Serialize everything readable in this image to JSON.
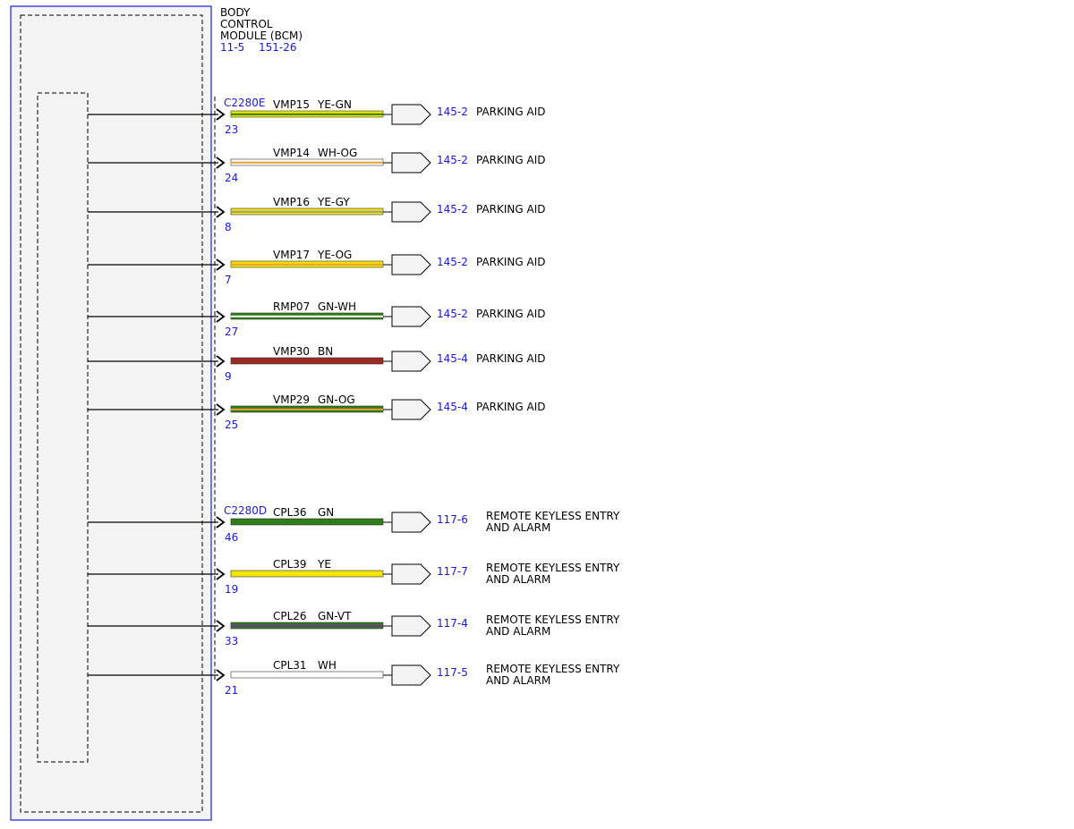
{
  "module": {
    "title_lines": [
      "BODY",
      "CONTROL",
      "MODULE (BCM)"
    ],
    "refs": [
      "11-5",
      "151-26"
    ]
  },
  "colors": {
    "YE": "#f2e600",
    "GN": "#2e7d18",
    "WH": "#ffffff",
    "OG": "#f0a030",
    "GY": "#9a9a9a",
    "BN": "#9b2a22",
    "VT": "#7a2fa0",
    "link_blue": "#1a1adb",
    "module_border": "#1a1adb",
    "module_fill": "#f4f4f4"
  },
  "connectors": [
    {
      "name": "C2280E",
      "first_wire": 0
    },
    {
      "name": "C2280D",
      "first_wire": 7
    }
  ],
  "wires": [
    {
      "pin": "23",
      "circuit": "VMP15",
      "color_code": "YE-GN",
      "base": "YE",
      "stripe": "GN",
      "ref": "145-2",
      "dest": [
        "PARKING AID"
      ]
    },
    {
      "pin": "24",
      "circuit": "VMP14",
      "color_code": "WH-OG",
      "base": "WH",
      "stripe": "OG",
      "ref": "145-2",
      "dest": [
        "PARKING AID"
      ]
    },
    {
      "pin": "8",
      "circuit": "VMP16",
      "color_code": "YE-GY",
      "base": "YE",
      "stripe": "GY",
      "ref": "145-2",
      "dest": [
        "PARKING AID"
      ]
    },
    {
      "pin": "7",
      "circuit": "VMP17",
      "color_code": "YE-OG",
      "base": "YE",
      "stripe": "OG",
      "ref": "145-2",
      "dest": [
        "PARKING AID"
      ]
    },
    {
      "pin": "27",
      "circuit": "RMP07",
      "color_code": "GN-WH",
      "base": "GN",
      "stripe": "WH",
      "ref": "145-2",
      "dest": [
        "PARKING AID"
      ]
    },
    {
      "pin": "9",
      "circuit": "VMP30",
      "color_code": "BN",
      "base": "BN",
      "stripe": null,
      "ref": "145-4",
      "dest": [
        "PARKING AID"
      ]
    },
    {
      "pin": "25",
      "circuit": "VMP29",
      "color_code": "GN-OG",
      "base": "GN",
      "stripe": "OG",
      "ref": "145-4",
      "dest": [
        "PARKING AID"
      ]
    },
    {
      "pin": "46",
      "circuit": "CPL36",
      "color_code": "GN",
      "base": "GN",
      "stripe": null,
      "ref": "117-6",
      "dest": [
        "REMOTE KEYLESS ENTRY",
        "AND ALARM"
      ]
    },
    {
      "pin": "19",
      "circuit": "CPL39",
      "color_code": "YE",
      "base": "YE",
      "stripe": null,
      "ref": "117-7",
      "dest": [
        "REMOTE KEYLESS ENTRY",
        "AND ALARM"
      ]
    },
    {
      "pin": "33",
      "circuit": "CPL26",
      "color_code": "GN-VT",
      "base": "GN",
      "stripe": "VT",
      "ref": "117-4",
      "dest": [
        "REMOTE KEYLESS ENTRY",
        "AND ALARM"
      ]
    },
    {
      "pin": "21",
      "circuit": "CPL31",
      "color_code": "WH",
      "base": "WH",
      "stripe": null,
      "ref": "117-5",
      "dest": [
        "REMOTE KEYLESS ENTRY",
        "AND ALARM"
      ]
    }
  ]
}
